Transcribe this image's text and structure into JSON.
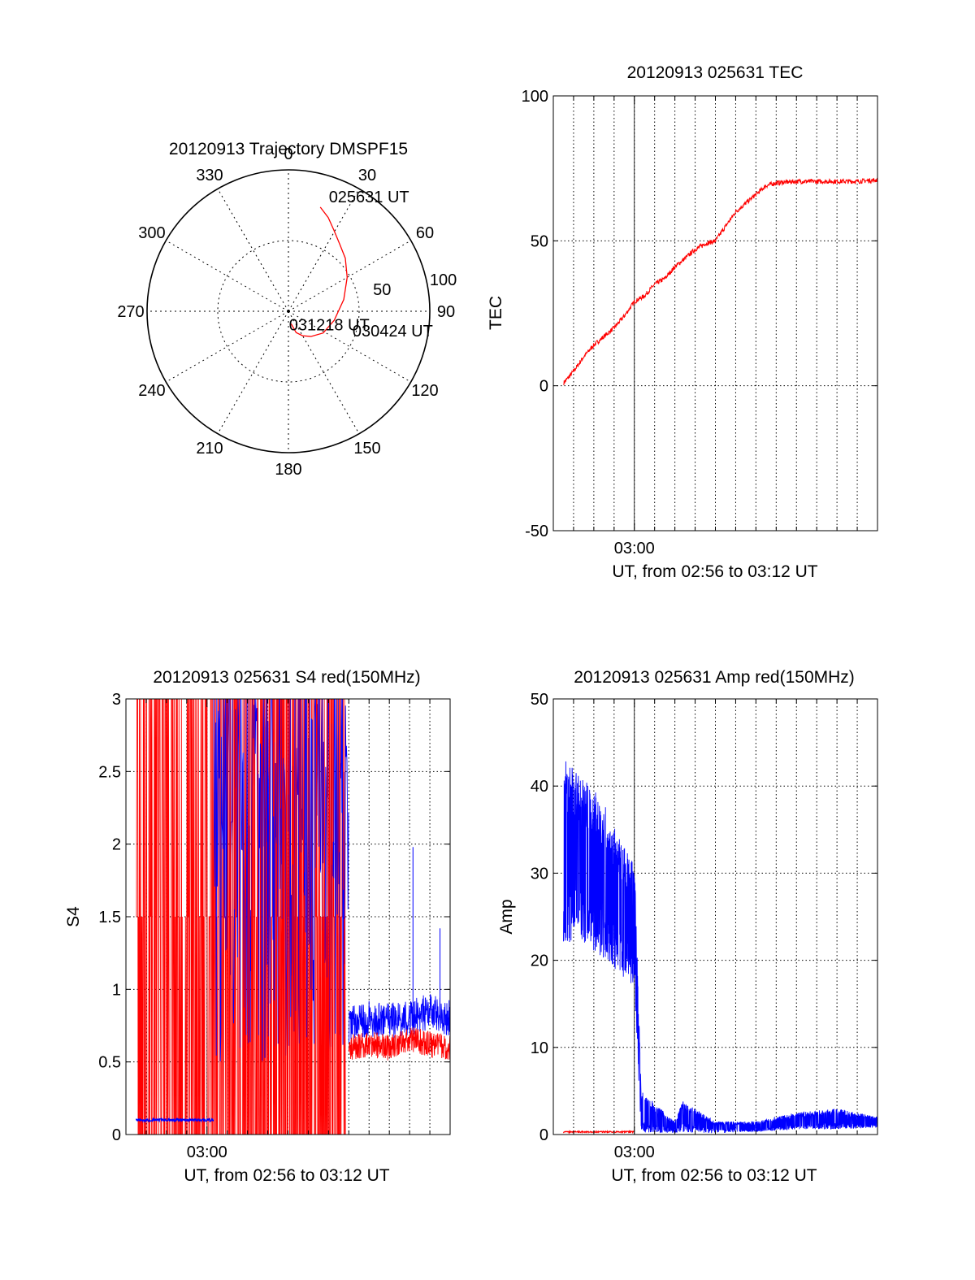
{
  "chart_data": [
    {
      "type": "polar",
      "title": "20120913 Trajectory DMSPF15",
      "angle_labels": [
        "0",
        "30",
        "60",
        "90",
        "120",
        "150",
        "180",
        "210",
        "240",
        "270",
        "300",
        "330"
      ],
      "angle_values": [
        0,
        30,
        60,
        90,
        120,
        150,
        180,
        210,
        240,
        270,
        300,
        330
      ],
      "radius_labels": [
        "50",
        "100"
      ],
      "radius_values": [
        50,
        100
      ],
      "rlim": [
        0,
        100
      ],
      "grid": true,
      "series": [
        {
          "color": "#ff0000",
          "points": [
            [
              17,
              77
            ],
            [
              23,
              72
            ],
            [
              29,
              66
            ],
            [
              37,
              60
            ],
            [
              47,
              55
            ],
            [
              60,
              48
            ],
            [
              78,
              40
            ],
            [
              101,
              33
            ],
            [
              122,
              29
            ],
            [
              138,
              24
            ],
            [
              150,
              20
            ],
            [
              160,
              16
            ],
            [
              168,
              9
            ]
          ]
        }
      ],
      "annotations": [
        {
          "text": "025631 UT",
          "az": 17,
          "r": 77
        },
        {
          "text": "030424 UT",
          "az": 101,
          "r": 33
        },
        {
          "text": "031218 UT",
          "az": 168,
          "r": 9
        }
      ]
    },
    {
      "type": "line",
      "title": "20120913 025631 TEC",
      "ylabel": "TEC",
      "xlabel": "UT, from 02:56 to 03:12 UT",
      "xlim": [
        "02:56:00",
        "03:12:00"
      ],
      "ylim": [
        -50,
        100
      ],
      "yticks": [
        -50,
        0,
        50,
        100
      ],
      "xticks": [
        "03:00"
      ],
      "grid": true,
      "series": [
        {
          "color": "#ff0000",
          "x": [
            "02:56:31",
            "02:57:00",
            "02:57:30",
            "02:58:00",
            "02:58:30",
            "02:59:00",
            "02:59:30",
            "03:00:00",
            "03:00:30",
            "03:01:00",
            "03:01:30",
            "03:02:00",
            "03:02:30",
            "03:03:00",
            "03:03:30",
            "03:04:00",
            "03:04:30",
            "03:05:00",
            "03:05:30",
            "03:06:00",
            "03:06:30",
            "03:07:00",
            "03:08:00",
            "03:09:00",
            "03:10:00",
            "03:11:00",
            "03:12:00"
          ],
          "y": [
            1,
            5,
            10,
            14,
            17,
            20,
            24,
            29,
            31,
            35,
            37,
            41,
            44,
            47,
            49,
            50,
            55,
            60,
            63,
            66,
            69,
            70,
            70.5,
            70.5,
            70.5,
            70.5,
            71
          ]
        }
      ]
    },
    {
      "type": "line",
      "title": "20120913 025631 S4 red(150MHz)",
      "ylabel": "S4",
      "xlabel": "UT, from 02:56 to 03:12 UT",
      "xlim": [
        "02:56:00",
        "03:12:00"
      ],
      "ylim": [
        0,
        3
      ],
      "yticks": [
        0,
        0.5,
        1,
        1.5,
        2,
        2.5,
        3
      ],
      "ytick_labels": [
        "0",
        "0.5",
        "1",
        "1.5",
        "2",
        "2.5",
        "3"
      ],
      "xticks": [
        "03:00"
      ],
      "grid": true,
      "series": [
        {
          "color": "#ff0000",
          "x": [
            "02:56:30",
            "02:58:00",
            "03:00:00",
            "03:02:00",
            "03:04:00",
            "03:06:00",
            "03:06:50",
            "03:07:00",
            "03:08:00",
            "03:09:00",
            "03:10:00",
            "03:11:00",
            "03:12:00"
          ],
          "y": [
            3,
            0,
            3,
            0,
            3,
            0,
            0,
            0.6,
            0.62,
            0.6,
            0.66,
            0.62,
            0.6
          ],
          "saturated_range": [
            "02:56:30",
            "03:06:50"
          ]
        },
        {
          "color": "#0000ff",
          "x": [
            "02:56:30",
            "02:58:00",
            "03:00:00",
            "03:00:20",
            "03:02:00",
            "03:04:00",
            "03:06:00",
            "03:07:00",
            "03:08:00",
            "03:09:00",
            "03:10:00",
            "03:11:00",
            "03:12:00"
          ],
          "y": [
            0.1,
            0.1,
            0.1,
            3,
            0.5,
            3,
            0.9,
            0.75,
            0.8,
            0.78,
            0.8,
            0.85,
            0.8
          ],
          "spikes": [
            {
              "x": "03:10:10",
              "y": 1.98
            },
            {
              "x": "03:11:30",
              "y": 1.42
            }
          ]
        }
      ]
    },
    {
      "type": "line",
      "title": "20120913 025631 Amp red(150MHz)",
      "ylabel": "Amp",
      "xlabel": "UT, from 02:56 to 03:12 UT",
      "xlim": [
        "02:56:00",
        "03:12:00"
      ],
      "ylim": [
        0,
        50
      ],
      "yticks": [
        0,
        10,
        20,
        30,
        40,
        50
      ],
      "xticks": [
        "03:00"
      ],
      "grid": true,
      "series": [
        {
          "color": "#0000ff",
          "x": [
            "02:56:30",
            "02:57:30",
            "02:58:30",
            "02:59:30",
            "03:00:00",
            "03:00:20",
            "03:02:00",
            "03:02:20",
            "03:04:00",
            "03:06:00",
            "03:08:00",
            "03:10:00",
            "03:12:00"
          ],
          "y_min": [
            22,
            22,
            20,
            18,
            17,
            0.2,
            0.2,
            0.2,
            0.2,
            0.3,
            0.6,
            0.6,
            0.8
          ],
          "y_max": [
            44,
            41,
            38,
            33,
            33,
            5,
            1.5,
            4,
            1.5,
            1.5,
            2.5,
            3,
            2
          ],
          "y": [
            33,
            31,
            29,
            27,
            26,
            0.5,
            0.6,
            0.7,
            0.6,
            0.8,
            1.2,
            1.2,
            1.2
          ]
        },
        {
          "color": "#ff0000",
          "x": [
            "02:56:30",
            "02:58:00",
            "03:00:00"
          ],
          "y": [
            0.3,
            0.3,
            0.3
          ]
        }
      ]
    }
  ]
}
